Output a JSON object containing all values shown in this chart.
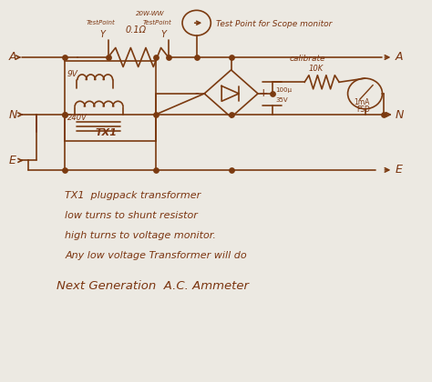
{
  "bg_color": "#ece9e2",
  "line_color": "#7B3A10",
  "text_color": "#7B3510",
  "title": "Next Generation  A.C. Ammeter",
  "note_lines": [
    "TX1  plugpack transformer",
    "low turns to shunt resistor",
    "high turns to voltage monitor.",
    "Any low voltage Transformer will do"
  ],
  "figsize": [
    4.74,
    4.2
  ],
  "dpi": 100
}
